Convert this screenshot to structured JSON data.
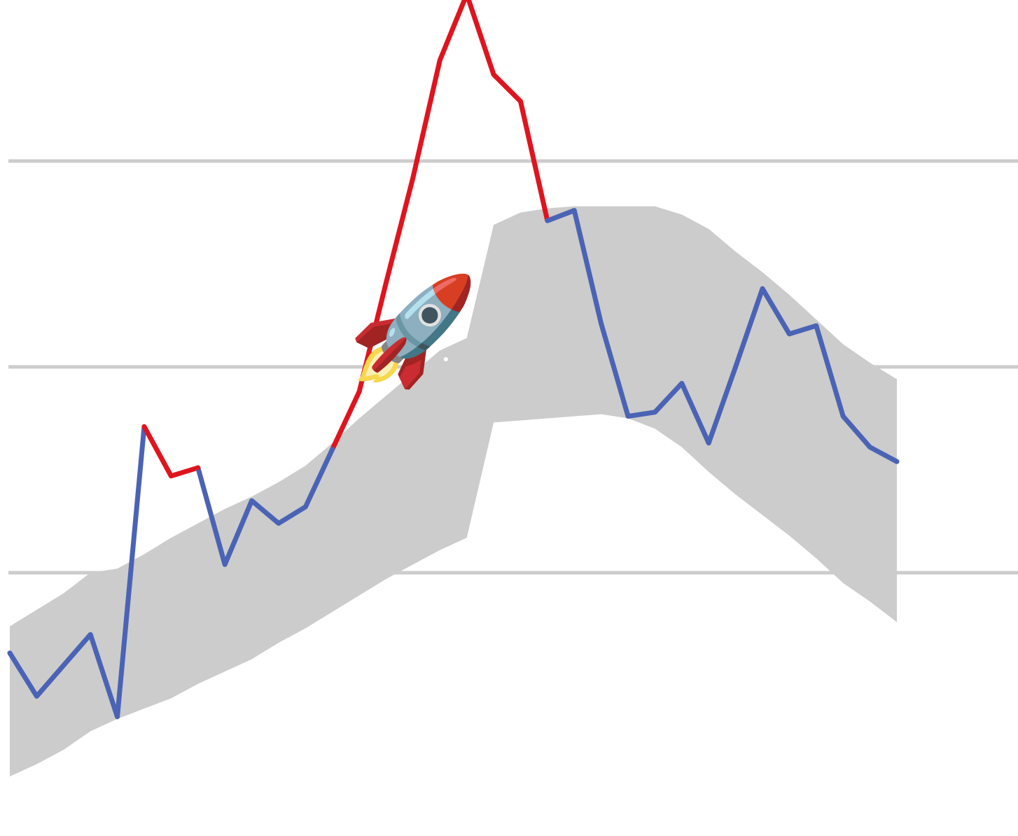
{
  "chart_data": {
    "type": "line",
    "title": "",
    "xlabel": "",
    "ylabel": "",
    "ylim": [
      0,
      4
    ],
    "gridlines": [
      1,
      2,
      3,
      4
    ],
    "grid": true,
    "legend": "none",
    "x": [
      0,
      1,
      2,
      3,
      4,
      5,
      6,
      7,
      8,
      9,
      10,
      11,
      12,
      13,
      14,
      15,
      16,
      17,
      18,
      19,
      20,
      21,
      22,
      23,
      24,
      25,
      26,
      27,
      28,
      29,
      30,
      31,
      32,
      33
    ],
    "series": [
      {
        "values": [
          0.61,
          0.4,
          0.55,
          0.7,
          0.3,
          1.71,
          1.47,
          1.51,
          1.04,
          1.35,
          1.24,
          1.32,
          1.6,
          1.88,
          2.41,
          2.92,
          3.49,
          3.81,
          3.42,
          3.29,
          2.71,
          2.76,
          2.21,
          1.76,
          1.78,
          1.92,
          1.63,
          2.0,
          2.38,
          2.16,
          2.2,
          1.76,
          1.61,
          1.54
        ],
        "colors": {
          "above_band": "#e0141e",
          "within_band": "#4a63b5"
        }
      }
    ],
    "band": {
      "color": "#cccccc",
      "upper": [
        0.74,
        0.82,
        0.9,
        1.0,
        1.02,
        1.09,
        1.17,
        1.24,
        1.31,
        1.37,
        1.44,
        1.52,
        1.63,
        1.75,
        1.86,
        1.97,
        2.08,
        2.14,
        2.69,
        2.75,
        2.77,
        2.78,
        2.78,
        2.78,
        2.78,
        2.74,
        2.67,
        2.56,
        2.46,
        2.35,
        2.23,
        2.11,
        2.02,
        1.94
      ],
      "lower": [
        0.01,
        0.07,
        0.14,
        0.23,
        0.29,
        0.34,
        0.39,
        0.46,
        0.52,
        0.58,
        0.66,
        0.73,
        0.81,
        0.89,
        0.97,
        1.04,
        1.11,
        1.17,
        1.73,
        1.74,
        1.75,
        1.76,
        1.77,
        1.75,
        1.7,
        1.61,
        1.49,
        1.38,
        1.28,
        1.18,
        1.07,
        0.95,
        0.86,
        0.76
      ]
    },
    "annotations": [
      {
        "icon": "rocket-icon",
        "glyph": "🚀",
        "x": 15,
        "y": 2.14
      },
      {
        "icon": "champagne-bottle-icon",
        "glyph": "🍾",
        "x": 17.5,
        "y": 4.48
      }
    ]
  }
}
